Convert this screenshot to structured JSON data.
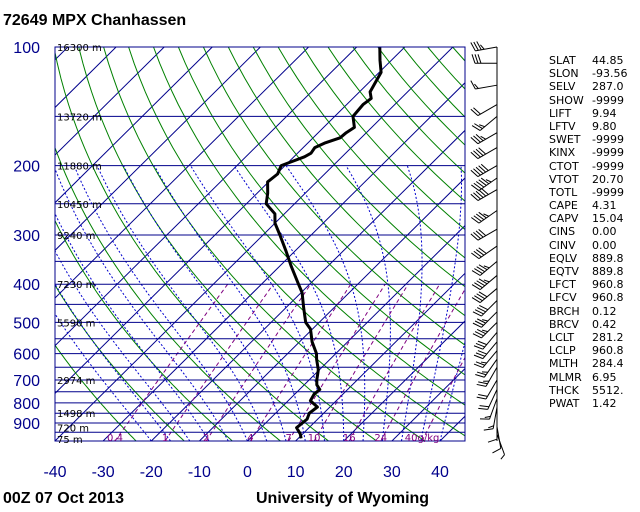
{
  "header": {
    "station": "72649 MPX Chanhassen"
  },
  "footer": {
    "date": "00Z 07 Oct 2013",
    "source": "University of Wyoming"
  },
  "indices": [
    {
      "name": "SLAT",
      "value": "44.85"
    },
    {
      "name": "SLON",
      "value": "-93.56"
    },
    {
      "name": "SELV",
      "value": "287.0"
    },
    {
      "name": "SHOW",
      "value": "-9999"
    },
    {
      "name": "LIFT",
      "value": "9.94"
    },
    {
      "name": "LFTV",
      "value": "9.80"
    },
    {
      "name": "SWET",
      "value": "-9999"
    },
    {
      "name": "KINX",
      "value": "-9999"
    },
    {
      "name": "CTOT",
      "value": "-9999"
    },
    {
      "name": "VTOT",
      "value": "20.70"
    },
    {
      "name": "TOTL",
      "value": "-9999"
    },
    {
      "name": "CAPE",
      "value": "4.31"
    },
    {
      "name": "CAPV",
      "value": "15.04"
    },
    {
      "name": "CINS",
      "value": "0.00"
    },
    {
      "name": "CINV",
      "value": "0.00"
    },
    {
      "name": "EQLV",
      "value": "889.8"
    },
    {
      "name": "EQTV",
      "value": "889.8"
    },
    {
      "name": "LFCT",
      "value": "960.8"
    },
    {
      "name": "LFCV",
      "value": "960.8"
    },
    {
      "name": "BRCH",
      "value": "0.12"
    },
    {
      "name": "BRCV",
      "value": "0.42"
    },
    {
      "name": "LCLT",
      "value": "281.2"
    },
    {
      "name": "LCLP",
      "value": "960.8"
    },
    {
      "name": "MLTH",
      "value": "284.4"
    },
    {
      "name": "MLMR",
      "value": "6.95"
    },
    {
      "name": "THCK",
      "value": "5512."
    },
    {
      "name": "PWAT",
      "value": "1.42"
    }
  ],
  "chart_data": {
    "type": "line",
    "chart_kind": "skew-T log-P sounding diagram",
    "pressure_axis": {
      "scale": "log",
      "range_hpa": [
        100,
        1000
      ],
      "tick_labels": [
        "100",
        "200",
        "300",
        "400",
        "500",
        "600",
        "700",
        "800",
        "900"
      ]
    },
    "temperature_axis": {
      "range_c": [
        -40,
        45
      ],
      "tick_labels": [
        "-40",
        "-30",
        "-20",
        "-10",
        "0",
        "10",
        "20",
        "30",
        "40"
      ]
    },
    "height_labels": [
      {
        "pressure": 100,
        "label": "16300 m"
      },
      {
        "pressure": 150,
        "label": "13720 m"
      },
      {
        "pressure": 200,
        "label": "11880 m"
      },
      {
        "pressure": 250,
        "label": "10450 m"
      },
      {
        "pressure": 300,
        "label": "9240 m"
      },
      {
        "pressure": 400,
        "label": "7230 m"
      },
      {
        "pressure": 500,
        "label": "5590 m"
      },
      {
        "pressure": 700,
        "label": "2974 m"
      },
      {
        "pressure": 850,
        "label": "1498 m"
      },
      {
        "pressure": 925,
        "label": "720 m"
      },
      {
        "pressure": 1000,
        "label": "75 m"
      }
    ],
    "mixing_ratio_labels": [
      "0.4",
      "1",
      "2",
      "4",
      "7",
      "10",
      "16",
      "24",
      "40g/kg"
    ],
    "mixing_ratio_values": [
      0.4,
      1,
      2,
      4,
      7,
      10,
      16,
      24,
      40
    ],
    "series": [
      {
        "name": "temperature",
        "color": "#000000",
        "points": [
          {
            "p": 985,
            "t": 10.6
          },
          {
            "p": 960,
            "t": 9.5
          },
          {
            "p": 925,
            "t": 7.4
          },
          {
            "p": 880,
            "t": 7.8
          },
          {
            "p": 850,
            "t": 7.0
          },
          {
            "p": 820,
            "t": 7.4
          },
          {
            "p": 790,
            "t": 4.6
          },
          {
            "p": 760,
            "t": 4.0
          },
          {
            "p": 740,
            "t": 4.2
          },
          {
            "p": 720,
            "t": 2.6
          },
          {
            "p": 700,
            "t": 1.6
          },
          {
            "p": 660,
            "t": -0.2
          },
          {
            "p": 620,
            "t": -2.8
          },
          {
            "p": 600,
            "t": -4.0
          },
          {
            "p": 560,
            "t": -7.4
          },
          {
            "p": 520,
            "t": -10.4
          },
          {
            "p": 500,
            "t": -12.8
          },
          {
            "p": 460,
            "t": -16.2
          },
          {
            "p": 420,
            "t": -19.8
          },
          {
            "p": 400,
            "t": -22.3
          },
          {
            "p": 360,
            "t": -27.6
          },
          {
            "p": 330,
            "t": -31.8
          },
          {
            "p": 300,
            "t": -36.5
          },
          {
            "p": 280,
            "t": -40.0
          },
          {
            "p": 265,
            "t": -42.0
          },
          {
            "p": 250,
            "t": -45.9
          },
          {
            "p": 235,
            "t": -47.8
          },
          {
            "p": 220,
            "t": -50.2
          },
          {
            "p": 210,
            "t": -49.8
          },
          {
            "p": 200,
            "t": -50.8
          },
          {
            "p": 196,
            "t": -49.6
          },
          {
            "p": 190,
            "t": -47.8
          },
          {
            "p": 186,
            "t": -47.2
          },
          {
            "p": 180,
            "t": -47.6
          },
          {
            "p": 175,
            "t": -46.4
          },
          {
            "p": 170,
            "t": -44.4
          },
          {
            "p": 165,
            "t": -44.2
          },
          {
            "p": 160,
            "t": -43.6
          },
          {
            "p": 150,
            "t": -46.2
          },
          {
            "p": 140,
            "t": -46.6
          },
          {
            "p": 135,
            "t": -46.2
          },
          {
            "p": 130,
            "t": -47.8
          },
          {
            "p": 122,
            "t": -48.8
          },
          {
            "p": 116,
            "t": -49.6
          },
          {
            "p": 108,
            "t": -52.4
          },
          {
            "p": 100,
            "t": -55.2
          }
        ]
      }
    ],
    "wind_barbs": [
      {
        "p": 100,
        "dir": 260,
        "spd": 35
      },
      {
        "p": 110,
        "dir": 270,
        "spd": 30
      },
      {
        "p": 125,
        "dir": 260,
        "spd": 15
      },
      {
        "p": 140,
        "dir": 240,
        "spd": 20
      },
      {
        "p": 150,
        "dir": 230,
        "spd": 25
      },
      {
        "p": 165,
        "dir": 240,
        "spd": 35
      },
      {
        "p": 180,
        "dir": 240,
        "spd": 40
      },
      {
        "p": 200,
        "dir": 240,
        "spd": 50
      },
      {
        "p": 215,
        "dir": 235,
        "spd": 55
      },
      {
        "p": 230,
        "dir": 240,
        "spd": 50
      },
      {
        "p": 260,
        "dir": 235,
        "spd": 45
      },
      {
        "p": 290,
        "dir": 240,
        "spd": 40
      },
      {
        "p": 320,
        "dir": 235,
        "spd": 40
      },
      {
        "p": 350,
        "dir": 230,
        "spd": 45
      },
      {
        "p": 380,
        "dir": 230,
        "spd": 45
      },
      {
        "p": 410,
        "dir": 230,
        "spd": 40
      },
      {
        "p": 440,
        "dir": 225,
        "spd": 40
      },
      {
        "p": 470,
        "dir": 225,
        "spd": 35
      },
      {
        "p": 500,
        "dir": 225,
        "spd": 35
      },
      {
        "p": 530,
        "dir": 220,
        "spd": 30
      },
      {
        "p": 560,
        "dir": 220,
        "spd": 30
      },
      {
        "p": 590,
        "dir": 220,
        "spd": 25
      },
      {
        "p": 620,
        "dir": 215,
        "spd": 25
      },
      {
        "p": 650,
        "dir": 210,
        "spd": 25
      },
      {
        "p": 700,
        "dir": 210,
        "spd": 20
      },
      {
        "p": 740,
        "dir": 205,
        "spd": 20
      },
      {
        "p": 780,
        "dir": 200,
        "spd": 15
      },
      {
        "p": 820,
        "dir": 190,
        "spd": 15
      },
      {
        "p": 870,
        "dir": 180,
        "spd": 10
      },
      {
        "p": 920,
        "dir": 170,
        "spd": 10
      },
      {
        "p": 960,
        "dir": 160,
        "spd": 5
      }
    ],
    "colors": {
      "isobar": "#00008b",
      "isotherm": "#00008b",
      "dry_adiabat": "#008000",
      "moist_adiabat": "#0000cd",
      "mixing_ratio": "#800080",
      "axis_text": "#00008b"
    }
  }
}
